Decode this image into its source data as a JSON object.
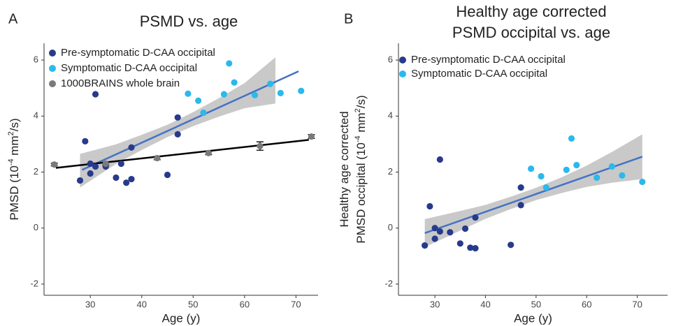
{
  "chart_data": [
    {
      "type": "scatter",
      "panel_label": "A",
      "title": [
        "PSMD vs. age"
      ],
      "xlabel": "Age (y)",
      "ylabel": [
        [
          "PMSD (10",
          "-4",
          " mm",
          "2",
          "/s)"
        ]
      ],
      "xlim": [
        21,
        74.3
      ],
      "ylim": [
        -2.4,
        6.6
      ],
      "xticks": [
        30,
        40,
        50,
        60,
        70
      ],
      "yticks": [
        -2,
        0,
        2,
        4,
        6
      ],
      "series": [
        {
          "name": "Pre-symptomatic D-CAA occipital",
          "color": "#283a8c",
          "x": [
            28,
            29,
            30,
            30,
            31,
            31,
            33,
            35,
            36,
            37,
            38,
            38,
            45,
            47,
            47
          ],
          "values": [
            1.7,
            3.1,
            2.3,
            1.95,
            4.78,
            2.2,
            2.2,
            1.8,
            2.3,
            1.62,
            2.88,
            1.75,
            1.9,
            3.95,
            3.35
          ]
        },
        {
          "name": "Symptomatic D-CAA occipital",
          "color": "#2bb9ec",
          "x": [
            49,
            51,
            52,
            56,
            57,
            58,
            62,
            65,
            67,
            71
          ],
          "values": [
            4.8,
            4.55,
            4.12,
            4.78,
            5.88,
            5.2,
            4.75,
            5.15,
            4.82,
            4.9
          ]
        },
        {
          "name": "1000BRAINS whole brain",
          "color": "#7a7a7a",
          "x": [
            23,
            33,
            43,
            53,
            63,
            73
          ],
          "values": [
            2.27,
            2.3,
            2.5,
            2.68,
            2.93,
            3.27
          ],
          "errors": [
            0.05,
            0.05,
            0.06,
            0.06,
            0.15,
            0.07
          ]
        }
      ],
      "band": {
        "color": "#c9c9c9",
        "x": [
          28,
          35,
          40,
          45,
          50,
          55,
          60,
          66
        ],
        "lower": [
          1.45,
          2.29,
          2.79,
          3.25,
          3.64,
          3.98,
          4.28,
          4.45
        ],
        "upper": [
          2.65,
          2.99,
          3.33,
          3.69,
          4.14,
          4.64,
          5.18,
          6.1
        ]
      },
      "fit_lines": [
        {
          "color": "#4472c4",
          "x": [
            28.4,
            70.5
          ],
          "values": [
            2.08,
            5.6
          ]
        },
        {
          "color": "#000000",
          "x": [
            23.3,
            72.5
          ],
          "values": [
            2.15,
            3.15
          ]
        }
      ]
    },
    {
      "type": "scatter",
      "panel_label": "B",
      "title": [
        "Healthy age corrected",
        "PSMD occipital vs. age"
      ],
      "xlabel": "Age (y)",
      "ylabel": [
        [
          "Healthy age corrected"
        ],
        [
          "PMSD occipital (10",
          "-4",
          " mm",
          "2",
          "/s)"
        ]
      ],
      "xlim": [
        22.8,
        76
      ],
      "ylim": [
        -2.4,
        6.6
      ],
      "xticks": [
        30,
        40,
        50,
        60,
        70
      ],
      "yticks": [
        -2,
        0,
        2,
        4,
        6
      ],
      "series": [
        {
          "name": "Pre-symptomatic D-CAA occipital",
          "color": "#283a8c",
          "x": [
            28,
            29,
            30,
            30,
            31,
            31,
            33,
            35,
            36,
            37,
            38,
            38,
            45,
            47,
            47
          ],
          "values": [
            -0.62,
            0.78,
            0,
            -0.38,
            2.45,
            -0.12,
            -0.15,
            -0.55,
            -0.02,
            -0.7,
            0.38,
            -0.72,
            -0.6,
            1.45,
            0.82
          ]
        },
        {
          "name": "Symptomatic D-CAA occipital",
          "color": "#2bb9ec",
          "x": [
            49,
            51,
            52,
            56,
            57,
            58,
            62,
            65,
            67,
            71
          ],
          "values": [
            2.12,
            1.85,
            1.45,
            2.08,
            3.2,
            2.25,
            1.8,
            2.2,
            1.88,
            1.65
          ]
        }
      ],
      "band": {
        "color": "#c9c9c9",
        "x": [
          28,
          35,
          40,
          45,
          50,
          55,
          60,
          65,
          71
        ],
        "lower": [
          -0.68,
          -0.09,
          0.33,
          0.68,
          1.0,
          1.25,
          1.47,
          1.62,
          1.75
        ],
        "upper": [
          0.32,
          0.61,
          0.83,
          1.12,
          1.44,
          1.81,
          2.23,
          2.72,
          3.35
        ]
      },
      "fit_lines": [
        {
          "color": "#4472c4",
          "x": [
            28,
            71
          ],
          "values": [
            -0.18,
            2.55
          ]
        }
      ]
    }
  ]
}
